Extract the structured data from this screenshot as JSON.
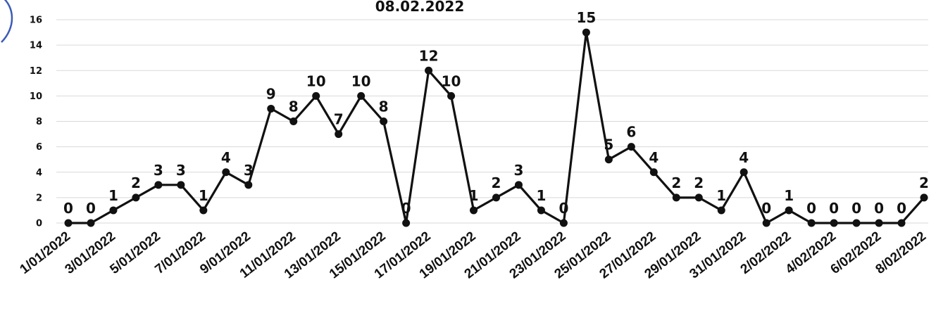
{
  "chart_data": {
    "type": "line",
    "title": "08.02.2022",
    "ylim": [
      0,
      16
    ],
    "yticks": [
      0,
      2,
      4,
      6,
      8,
      10,
      12,
      14,
      16
    ],
    "grid": true,
    "x": [
      "1/01/2022",
      "2/01/2022",
      "3/01/2022",
      "4/01/2022",
      "5/01/2022",
      "6/01/2022",
      "7/01/2022",
      "8/01/2022",
      "9/01/2022",
      "10/01/2022",
      "11/01/2022",
      "12/01/2022",
      "13/01/2022",
      "14/01/2022",
      "15/01/2022",
      "16/01/2022",
      "17/01/2022",
      "18/01/2022",
      "19/01/2022",
      "20/01/2022",
      "21/01/2022",
      "22/01/2022",
      "23/01/2022",
      "24/01/2022",
      "25/01/2022",
      "26/01/2022",
      "27/01/2022",
      "28/01/2022",
      "29/01/2022",
      "30/01/2022",
      "31/01/2022",
      "1/02/2022",
      "2/02/2022",
      "3/02/2022",
      "4/02/2022",
      "5/02/2022",
      "6/02/2022",
      "7/02/2022",
      "8/02/2022"
    ],
    "xtick_labels": [
      "1/01/2022",
      "3/01/2022",
      "5/01/2022",
      "7/01/2022",
      "9/01/2022",
      "11/01/2022",
      "13/01/2022",
      "15/01/2022",
      "17/01/2022",
      "19/01/2022",
      "21/01/2022",
      "23/01/2022",
      "25/01/2022",
      "27/01/2022",
      "29/01/2022",
      "31/01/2022",
      "2/02/2022",
      "4/02/2022",
      "6/02/2022",
      "8/02/2022"
    ],
    "series": [
      {
        "values": [
          0,
          0,
          1,
          2,
          3,
          3,
          1,
          4,
          3,
          9,
          8,
          10,
          7,
          10,
          8,
          0,
          12,
          10,
          1,
          2,
          3,
          1,
          0,
          15,
          5,
          6,
          4,
          2,
          2,
          1,
          4,
          0,
          1,
          0,
          0,
          0,
          0,
          0,
          2
        ]
      }
    ],
    "color": "#111111"
  }
}
